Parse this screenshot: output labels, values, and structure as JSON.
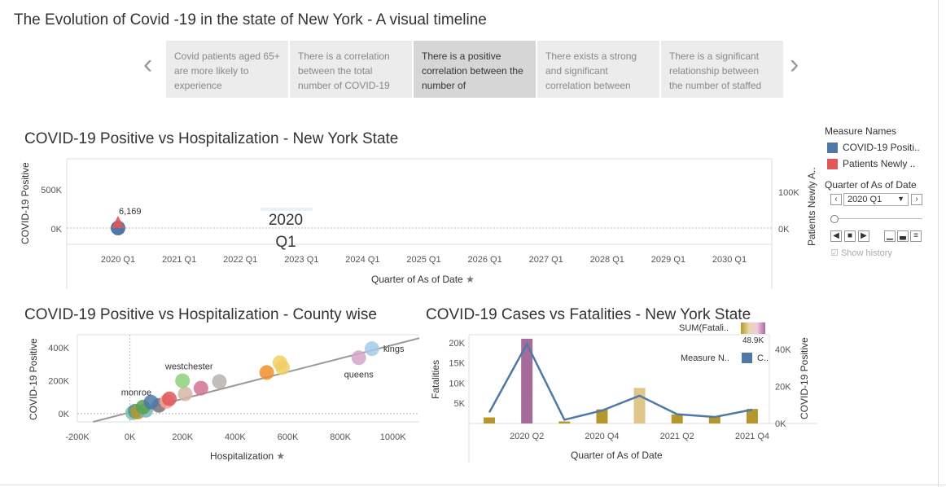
{
  "story": {
    "title": "The Evolution of Covid -19 in the state of New York - A visual timeline",
    "points": [
      {
        "text": "Covid patients aged 65+ are more likely to experience",
        "active": false
      },
      {
        "text": "There is a correlation between the total number of COVID-19",
        "active": false
      },
      {
        "text": "There is a positive correlation between the number of",
        "active": true
      },
      {
        "text": "There exists a strong and significant correlation between",
        "active": false
      },
      {
        "text": "There is a significant relationship between the number of staffed",
        "active": false
      }
    ],
    "prev_icon": "chevron-left-icon",
    "next_icon": "chevron-right-icon"
  },
  "chart1": {
    "title": "COVID-19 Positive vs Hospitalization - New York State",
    "ylabel_left": "COVID-19 Positive",
    "ylabel_right": "Patients Newly A..",
    "xlabel": "Quarter of As of Date",
    "left_ticks": [
      "500K",
      "0K"
    ],
    "right_ticks": [
      "100K",
      "0K"
    ],
    "x_ticks": [
      "2020 Q1",
      "2021 Q1",
      "2022 Q1",
      "2023 Q1",
      "2024 Q1",
      "2025 Q1",
      "2026 Q1",
      "2027 Q1",
      "2028 Q1",
      "2029 Q1",
      "2030 Q1"
    ],
    "mark_label": "6,169",
    "page_label_line1": "2020",
    "page_label_line2": "Q1"
  },
  "legend": {
    "measure_title": "Measure Names",
    "items": [
      {
        "label": "COVID-19 Positi..",
        "color": "#4e79a7"
      },
      {
        "label": "Patients Newly ..",
        "color": "#e15759"
      }
    ],
    "quarter_title": "Quarter of As of Date",
    "quarter_value": "2020 Q1",
    "show_history": "Show history"
  },
  "chart2": {
    "title": "COVID-19 Positive vs Hospitalization - County wise",
    "ylabel": "COVID-19 Positive",
    "xlabel": "Hospitalization",
    "y_ticks": [
      "400K",
      "200K",
      "0K"
    ],
    "x_ticks": [
      "-200K",
      "0K",
      "200K",
      "400K",
      "600K",
      "800K",
      "1000K"
    ],
    "labels": [
      "westchester",
      "monroe",
      "kings",
      "queens"
    ]
  },
  "chart3": {
    "title": "COVID-19 Cases vs Fatalities - New York State",
    "ylabel_left": "Fatalities",
    "ylabel_right": "COVID-19 Positive",
    "xlabel": "Quarter of As of Date",
    "left_ticks": [
      "20K",
      "15K",
      "10K",
      "5K"
    ],
    "right_ticks": [
      "40K",
      "20K",
      "0K"
    ],
    "x_ticks": [
      "2020 Q2",
      "2020 Q4",
      "2021 Q2",
      "2021 Q4"
    ],
    "legend_sum": "SUM(Fatali..",
    "legend_sum_value": "48.9K",
    "legend_measure": "Measure N..",
    "legend_measure_item": "C.."
  },
  "chart_data": [
    {
      "type": "line",
      "title": "COVID-19 Positive vs Hospitalization - New York State",
      "x": [
        "2020 Q1"
      ],
      "series": [
        {
          "name": "COVID-19 Positi..",
          "values": [
            6169
          ]
        },
        {
          "name": "Patients Newly ..",
          "values": [
            6169
          ]
        }
      ],
      "ylim_left": [
        0,
        500000
      ],
      "ylim_right": [
        0,
        100000
      ]
    },
    {
      "type": "scatter",
      "title": "COVID-19 Positive vs Hospitalization - County wise",
      "xlabel": "Hospitalization",
      "ylabel": "COVID-19 Positive",
      "xlim": [
        -200000,
        1100000
      ],
      "ylim": [
        -50000,
        480000
      ],
      "points": [
        {
          "x": 920000,
          "y": 395000,
          "label": "kings",
          "color": "#a0cbe8"
        },
        {
          "x": 870000,
          "y": 340000,
          "label": "queens",
          "color": "#d4a6c8"
        },
        {
          "x": 570000,
          "y": 310000,
          "label": "",
          "color": "#f1ce63"
        },
        {
          "x": 580000,
          "y": 280000,
          "label": "",
          "color": "#f1ce63"
        },
        {
          "x": 520000,
          "y": 250000,
          "label": "",
          "color": "#f28e2b"
        },
        {
          "x": 200000,
          "y": 200000,
          "label": "westchester",
          "color": "#8cd17d"
        },
        {
          "x": 340000,
          "y": 195000,
          "label": "",
          "color": "#bab0ac"
        },
        {
          "x": 270000,
          "y": 155000,
          "label": "",
          "color": "#d37295"
        },
        {
          "x": 210000,
          "y": 120000,
          "label": "",
          "color": "#d7b5a6"
        },
        {
          "x": 150000,
          "y": 90000,
          "label": "monroe",
          "color": "#e15759"
        },
        {
          "x": 140000,
          "y": 75000,
          "label": "",
          "color": "#ff9d9a"
        },
        {
          "x": 80000,
          "y": 70000,
          "label": "",
          "color": "#4e79a7"
        },
        {
          "x": 110000,
          "y": 50000,
          "label": "",
          "color": "#79706e"
        },
        {
          "x": 50000,
          "y": 40000,
          "label": "",
          "color": "#59a14f"
        },
        {
          "x": 60000,
          "y": 20000,
          "label": "",
          "color": "#76b7b2"
        },
        {
          "x": 30000,
          "y": 10000,
          "label": "",
          "color": "#b6992d"
        },
        {
          "x": 20000,
          "y": 15000,
          "label": "",
          "color": "#499894"
        },
        {
          "x": 10000,
          "y": 5000,
          "label": "",
          "color": "#86bcb6"
        }
      ],
      "trend": {
        "x1": -140000,
        "y1": -50000,
        "x2": 1200000,
        "y2": 500000
      }
    },
    {
      "type": "bar",
      "title": "COVID-19 Cases vs Fatalities - New York State",
      "categories": [
        "2020 Q1",
        "2020 Q2",
        "2020 Q3",
        "2020 Q4",
        "2021 Q1",
        "2021 Q2",
        "2021 Q3",
        "2021 Q4"
      ],
      "series": [
        {
          "name": "SUM(Fatali..",
          "values": [
            1500,
            21000,
            500,
            3500,
            8800,
            2200,
            1700,
            3600
          ]
        },
        {
          "name": "C..",
          "values": [
            6000,
            43000,
            2000,
            7000,
            15000,
            5000,
            3500,
            7500
          ]
        }
      ],
      "bar_colors": [
        "#b5962d",
        "#a56b9a",
        "#b5962d",
        "#b5962d",
        "#dfc68a",
        "#b5962d",
        "#b5962d",
        "#b5962d"
      ],
      "ylim_left": [
        0,
        22000
      ],
      "ylim_right": [
        0,
        48000
      ]
    }
  ]
}
